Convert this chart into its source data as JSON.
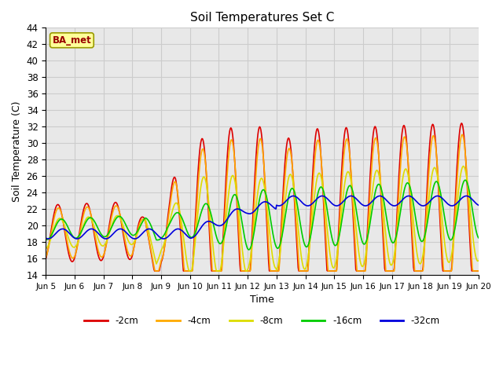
{
  "title": "Soil Temperatures Set C",
  "xlabel": "Time",
  "ylabel": "Soil Temperature (C)",
  "ylim": [
    14,
    44
  ],
  "xlim": [
    0,
    360
  ],
  "line_colors": [
    "#dd0000",
    "#ffaa00",
    "#dddd00",
    "#00cc00",
    "#0000dd"
  ],
  "line_labels": [
    "-2cm",
    "-4cm",
    "-8cm",
    "-16cm",
    "-32cm"
  ],
  "xtick_positions": [
    0,
    24,
    48,
    72,
    96,
    120,
    144,
    168,
    192,
    216,
    240,
    264,
    288,
    312,
    336,
    360
  ],
  "xtick_labels": [
    "Jun 5",
    "Jun 6",
    "Jun 7",
    "Jun 8",
    "Jun 9",
    "Jun 10",
    "Jun 11",
    "Jun 12",
    "Jun 13",
    "Jun 14",
    "Jun 15",
    "Jun 16",
    "Jun 17",
    "Jun 18",
    "Jun 19",
    "Jun 20"
  ],
  "ytick_positions": [
    14,
    16,
    18,
    20,
    22,
    24,
    26,
    28,
    30,
    32,
    34,
    36,
    38,
    40,
    42,
    44
  ],
  "grid_color": "#cccccc",
  "plot_bg_color": "#e8e8e8",
  "ba_met_label": "BA_met",
  "ba_met_color": "#990000",
  "ba_met_bg": "#ffff99",
  "ba_met_edge": "#999900"
}
